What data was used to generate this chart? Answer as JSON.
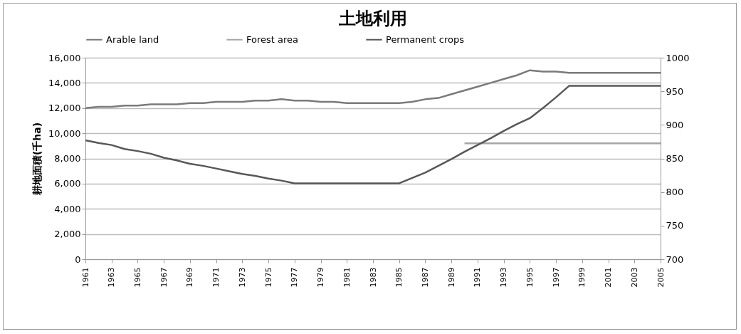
{
  "chart_data": {
    "type": "line",
    "title": "土地利用",
    "ylabel": "耕地面積(千ha)",
    "x": [
      1961,
      1962,
      1963,
      1964,
      1965,
      1966,
      1967,
      1968,
      1969,
      1970,
      1971,
      1972,
      1973,
      1974,
      1975,
      1976,
      1977,
      1978,
      1979,
      1980,
      1981,
      1982,
      1983,
      1984,
      1985,
      1986,
      1987,
      1988,
      1989,
      1990,
      1991,
      1992,
      1993,
      1994,
      1995,
      1996,
      1997,
      1998,
      1999,
      2000,
      2001,
      2002,
      2003,
      2004,
      2005
    ],
    "xlim": [
      1961,
      2005
    ],
    "xticks": [
      1961,
      1963,
      1965,
      1967,
      1969,
      1971,
      1973,
      1975,
      1977,
      1979,
      1981,
      1983,
      1985,
      1987,
      1989,
      1991,
      1993,
      1995,
      1997,
      1999,
      2001,
      2003,
      2005
    ],
    "ylim": [
      0,
      16000
    ],
    "yticks": [
      {
        "value": 0,
        "label": "0"
      },
      {
        "value": 2000,
        "label": "2,000"
      },
      {
        "value": 4000,
        "label": "4,000"
      },
      {
        "value": 6000,
        "label": "6,000"
      },
      {
        "value": 8000,
        "label": "8,000"
      },
      {
        "value": 10000,
        "label": "10,000"
      },
      {
        "value": 12000,
        "label": "12,000"
      },
      {
        "value": 14000,
        "label": "14,000"
      },
      {
        "value": 16000,
        "label": "16,000"
      }
    ],
    "y2lim": [
      700,
      1000
    ],
    "y2ticks": [
      700,
      750,
      800,
      850,
      900,
      950,
      1000
    ],
    "grid": "y",
    "legend": "top",
    "line_style": "solid",
    "series": [
      {
        "name": "Arable land",
        "color": "#7a7a7a",
        "values": [
          12000,
          12100,
          12100,
          12200,
          12200,
          12300,
          12300,
          12300,
          12400,
          12400,
          12500,
          12500,
          12500,
          12600,
          12600,
          12700,
          12600,
          12600,
          12500,
          12500,
          12400,
          12400,
          12400,
          12400,
          12400,
          12500,
          12700,
          12800,
          13100,
          13400,
          13700,
          14000,
          14300,
          14600,
          15000,
          14900,
          14900,
          14800,
          14800,
          14800,
          14800,
          14800,
          14800,
          14800,
          14800
        ]
      },
      {
        "name": "Forest area",
        "color": "#a6a6a6",
        "values": [
          null,
          null,
          null,
          null,
          null,
          null,
          null,
          null,
          null,
          null,
          null,
          null,
          null,
          null,
          null,
          null,
          null,
          null,
          null,
          null,
          null,
          null,
          null,
          null,
          null,
          null,
          null,
          null,
          null,
          9200,
          9200,
          9200,
          9200,
          9200,
          9200,
          9200,
          9200,
          9200,
          9200,
          9200,
          9200,
          9200,
          9200,
          9200,
          9200
        ]
      },
      {
        "name": "Permanent crops",
        "color": "#575757",
        "axis": "y2",
        "values": [
          877,
          873,
          870,
          864,
          861,
          857,
          851,
          847,
          842,
          839,
          835,
          831,
          827,
          824,
          820,
          817,
          813,
          813,
          813,
          813,
          813,
          813,
          813,
          813,
          813,
          821,
          829,
          839,
          849,
          860,
          870,
          880,
          891,
          901,
          910,
          925,
          941,
          958,
          958,
          958,
          958,
          958,
          958,
          958,
          958
        ]
      }
    ]
  }
}
